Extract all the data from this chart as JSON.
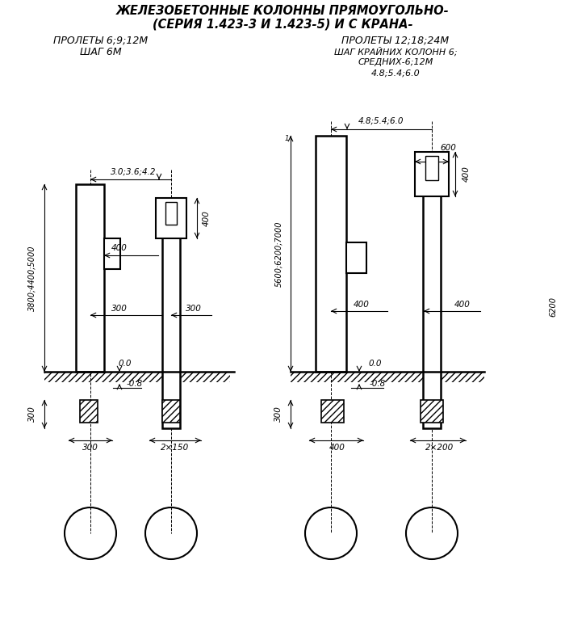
{
  "title_line1": "ЖЕЛЕЗОБЕТОННЫЕ КОЛОННЫ ПРЯМОУГОЛЬНО-",
  "title_line2": "(СЕРИЯ 1.423-3 И 1.423-5) И С КРАНА-",
  "sub_left_1": "ПРОЛЕТЫ 6;9;12М",
  "sub_left_2": "ШАГ 6М",
  "sub_right_1": "ПРОЛЕТЫ 12;18;24М",
  "sub_right_2": "ШАГ КРАЙНИХ КОЛОНН 6;",
  "sub_right_3": "СРЕДНИХ-6;12М",
  "sub_right_4": "4.8;5.4;6.0",
  "bg_color": "#ffffff"
}
